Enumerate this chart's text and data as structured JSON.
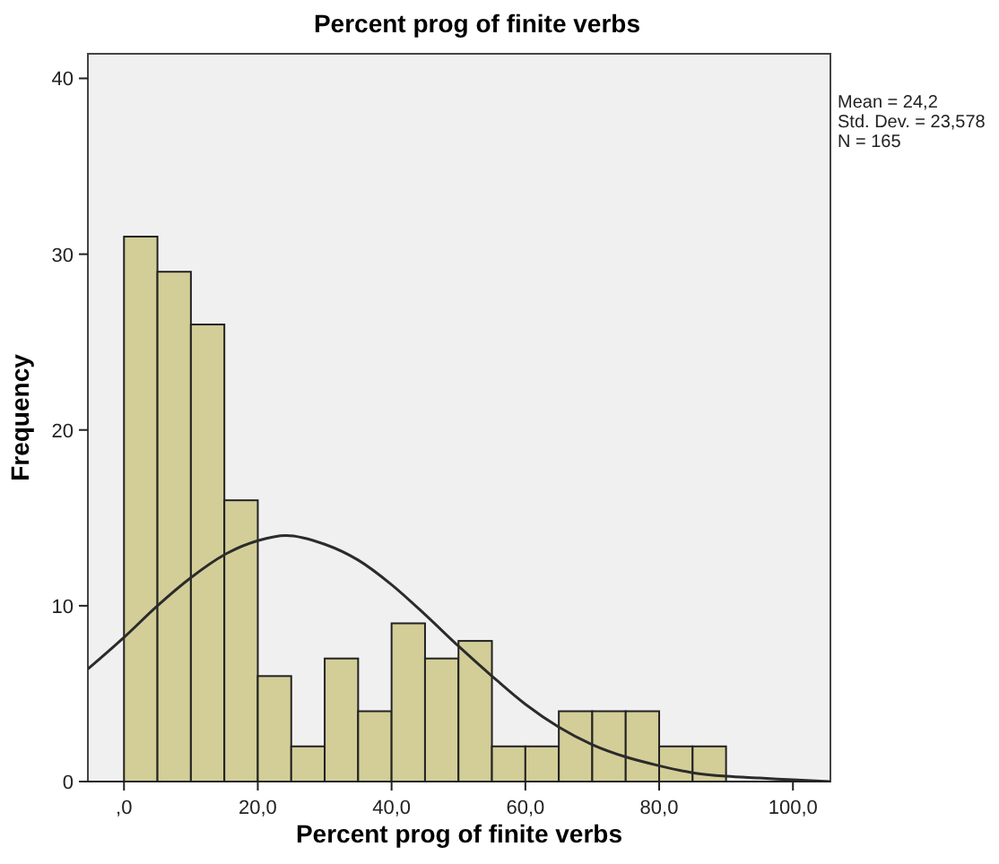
{
  "chart_data": {
    "type": "histogram",
    "title": "Percent prog of finite verbs",
    "xlabel": "Percent prog of finite verbs",
    "ylabel": "Frequency",
    "bins": [
      0,
      5,
      10,
      15,
      20,
      25,
      30,
      35,
      40,
      45,
      50,
      55,
      60,
      65,
      70,
      75,
      80,
      85,
      90
    ],
    "values": [
      31,
      29,
      26,
      16,
      6,
      2,
      7,
      4,
      9,
      7,
      8,
      2,
      2,
      4,
      4,
      4,
      2,
      2
    ],
    "color": "#d3ce98",
    "series": [
      {
        "type": "line",
        "color": "#2b2b2b",
        "x": [
          -5.4,
          0,
          5,
          10,
          15,
          20,
          24.2,
          30,
          35,
          40,
          45,
          50,
          55,
          60,
          65,
          70,
          75,
          80,
          85,
          90,
          95,
          100,
          105.6
        ],
        "values": [
          6.4,
          8.2,
          10.0,
          11.6,
          12.9,
          13.7,
          14.0,
          13.5,
          12.6,
          11.2,
          9.5,
          7.7,
          6.0,
          4.4,
          3.1,
          2.1,
          1.4,
          0.9,
          0.5,
          0.3,
          0.2,
          0.1,
          0
        ]
      }
    ],
    "xlim": [
      -5.4,
      105.6
    ],
    "xticks": [
      {
        "value": 0,
        "label": ",0"
      },
      {
        "value": 20,
        "label": "20,0"
      },
      {
        "value": 40,
        "label": "40,0"
      },
      {
        "value": 60,
        "label": "60,0"
      },
      {
        "value": 80,
        "label": "80,0"
      },
      {
        "value": 100,
        "label": "100,0"
      }
    ],
    "ylim": [
      0,
      41.4
    ],
    "yticks": [
      0,
      10,
      20,
      30,
      40
    ],
    "grid": false,
    "line_style": "solid",
    "annotations": [
      "Mean = 24,2",
      "Std. Dev. = 23,578",
      "N = 165"
    ]
  }
}
